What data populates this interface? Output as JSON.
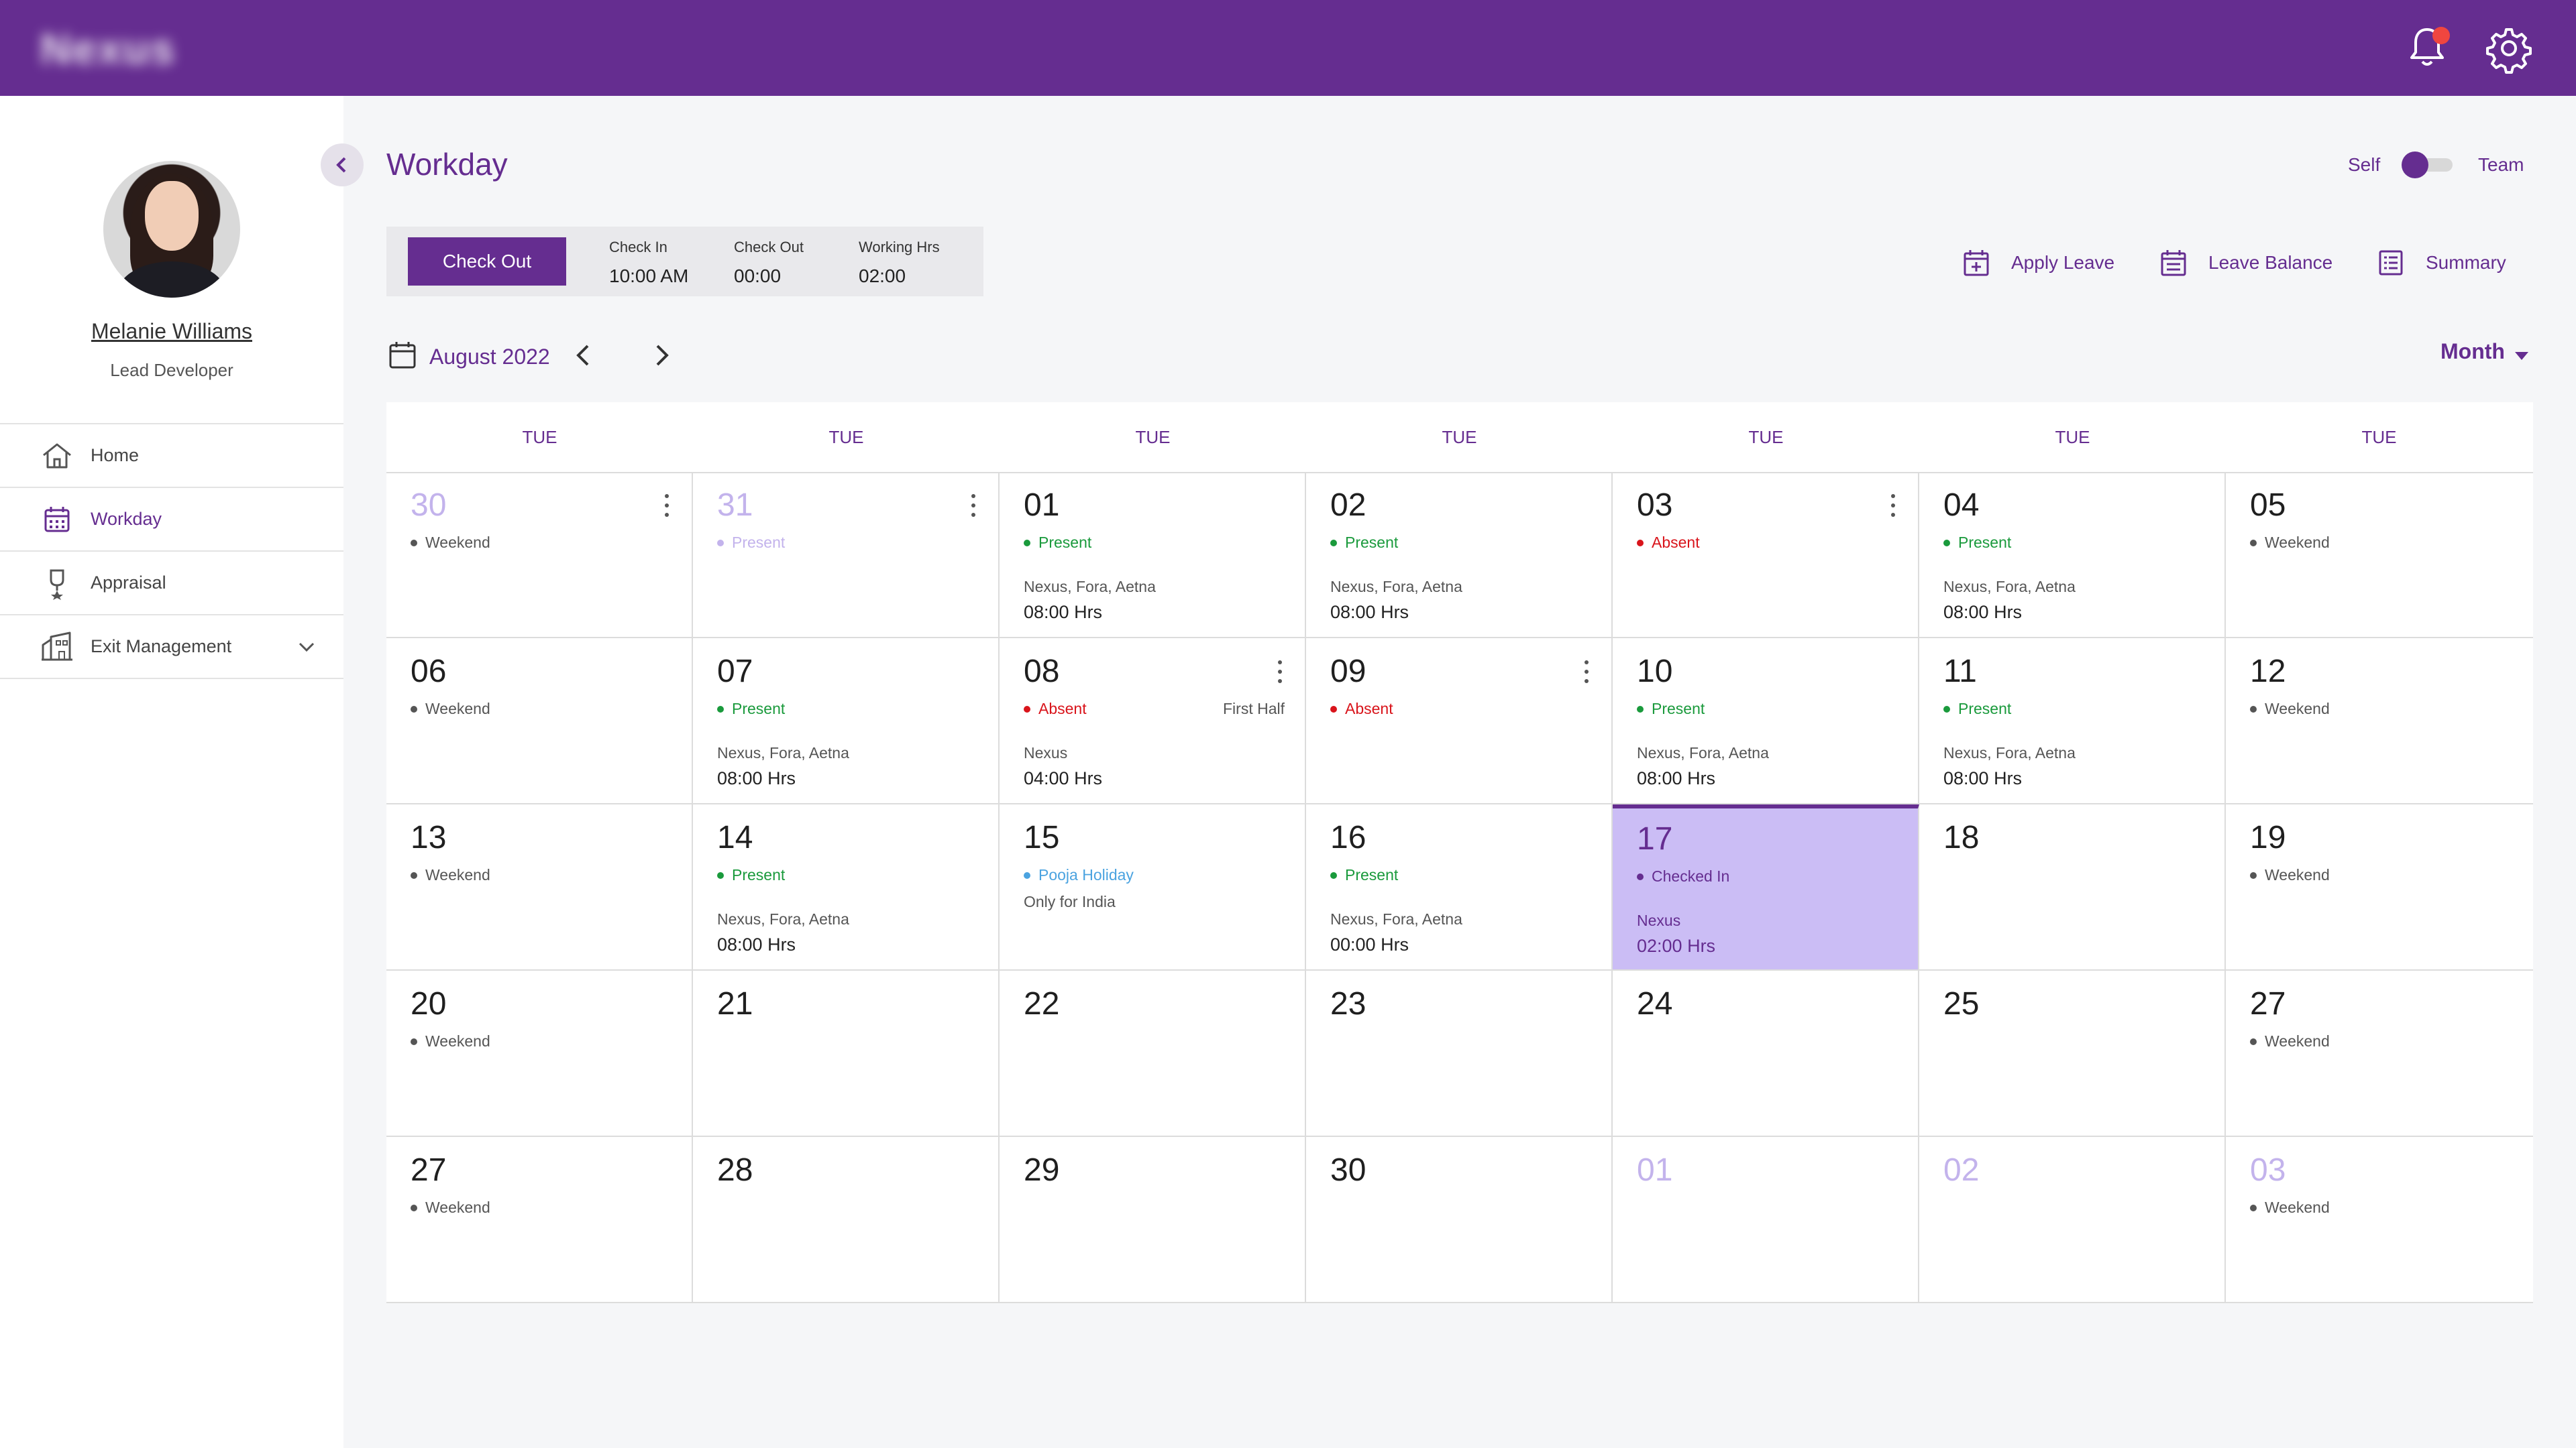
{
  "app": {
    "brand": "Nexus",
    "page_title": "Workday"
  },
  "user": {
    "name": "Melanie Williams",
    "role": "Lead Developer"
  },
  "nav": [
    {
      "label": "Home",
      "icon": "home-icon",
      "active": false
    },
    {
      "label": "Workday",
      "icon": "calendar-icon",
      "active": true
    },
    {
      "label": "Appraisal",
      "icon": "award-icon",
      "active": false
    },
    {
      "label": "Exit Management",
      "icon": "building-icon",
      "active": false
    }
  ],
  "view_toggle": {
    "left": "Self",
    "right": "Team",
    "selected": "Self"
  },
  "check": {
    "button": "Check Out",
    "check_in_label": "Check In",
    "check_in_value": "10:00 AM",
    "check_out_label": "Check Out",
    "check_out_value": "00:00",
    "working_label": "Working Hrs",
    "working_value": "02:00"
  },
  "actions": {
    "apply_leave": "Apply Leave",
    "leave_balance": "Leave Balance",
    "summary": "Summary"
  },
  "calendar": {
    "month": "August 2022",
    "view": "Month",
    "weekdays": [
      "TUE",
      "TUE",
      "TUE",
      "TUE",
      "TUE",
      "TUE",
      "TUE"
    ],
    "colors": {
      "primary": "#652d90",
      "present": "#1a9a3c",
      "absent": "#d9141b",
      "holiday": "#4ba3e0",
      "weekend": "#555555",
      "today_bg": "#cbbdf5",
      "faded": "#c3b3ec"
    },
    "days": [
      {
        "day": "30",
        "faded": true,
        "status": "Weekend",
        "type": "weekend",
        "menu": true
      },
      {
        "day": "31",
        "faded": true,
        "status": "Present",
        "type": "faded",
        "menu": true
      },
      {
        "day": "01",
        "status": "Present",
        "type": "present",
        "projects": "Nexus, Fora, Aetna",
        "hours": "08:00 Hrs"
      },
      {
        "day": "02",
        "status": "Present",
        "type": "present",
        "projects": "Nexus, Fora, Aetna",
        "hours": "08:00 Hrs"
      },
      {
        "day": "03",
        "status": "Absent",
        "type": "absent",
        "menu": true
      },
      {
        "day": "04",
        "status": "Present",
        "type": "present",
        "projects": "Nexus, Fora, Aetna",
        "hours": "08:00 Hrs"
      },
      {
        "day": "05",
        "status": "Weekend",
        "type": "weekend"
      },
      {
        "day": "06",
        "status": "Weekend",
        "type": "weekend"
      },
      {
        "day": "07",
        "status": "Present",
        "type": "present",
        "projects": "Nexus, Fora, Aetna",
        "hours": "08:00 Hrs"
      },
      {
        "day": "08",
        "status": "Absent",
        "type": "absent",
        "half": "First Half",
        "projects": "Nexus",
        "hours": "04:00 Hrs",
        "menu": true
      },
      {
        "day": "09",
        "status": "Absent",
        "type": "absent",
        "menu": true
      },
      {
        "day": "10",
        "status": "Present",
        "type": "present",
        "projects": "Nexus, Fora, Aetna",
        "hours": "08:00 Hrs"
      },
      {
        "day": "11",
        "status": "Present",
        "type": "present",
        "projects": "Nexus, Fora, Aetna",
        "hours": "08:00 Hrs"
      },
      {
        "day": "12",
        "status": "Weekend",
        "type": "weekend"
      },
      {
        "day": "13",
        "status": "Weekend",
        "type": "weekend"
      },
      {
        "day": "14",
        "status": "Present",
        "type": "present",
        "projects": "Nexus, Fora, Aetna",
        "hours": "08:00 Hrs"
      },
      {
        "day": "15",
        "status": "Pooja Holiday",
        "type": "holiday",
        "note": "Only for India"
      },
      {
        "day": "16",
        "status": "Present",
        "type": "present",
        "projects": "Nexus, Fora, Aetna",
        "hours": "00:00 Hrs"
      },
      {
        "day": "17",
        "status": "Checked In",
        "type": "today",
        "today": true,
        "projects": "Nexus",
        "hours": "02:00 Hrs"
      },
      {
        "day": "18"
      },
      {
        "day": "19",
        "status": "Weekend",
        "type": "weekend"
      },
      {
        "day": "20",
        "status": "Weekend",
        "type": "weekend"
      },
      {
        "day": "21"
      },
      {
        "day": "22"
      },
      {
        "day": "23"
      },
      {
        "day": "24"
      },
      {
        "day": "25"
      },
      {
        "day": "27",
        "status": "Weekend",
        "type": "weekend"
      },
      {
        "day": "27",
        "status": "Weekend",
        "type": "weekend"
      },
      {
        "day": "28"
      },
      {
        "day": "29"
      },
      {
        "day": "30"
      },
      {
        "day": "01",
        "faded": true
      },
      {
        "day": "02",
        "faded": true
      },
      {
        "day": "03",
        "faded": true,
        "status": "Weekend",
        "type": "weekend"
      }
    ]
  }
}
